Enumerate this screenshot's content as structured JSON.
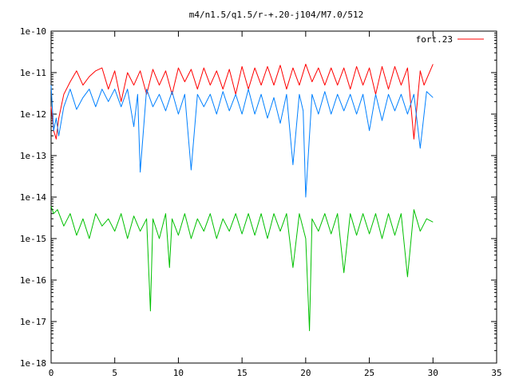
{
  "chart_data": {
    "type": "line",
    "title": "m4/n1.5/q1.5/r-+.20-j104/M7.0/512",
    "xlabel": "",
    "ylabel": "",
    "xlim": [
      0,
      35
    ],
    "ylim": [
      1e-18,
      1e-10
    ],
    "yscale": "log",
    "grid": false,
    "legend_position": "top-right",
    "x_ticks": [
      0,
      5,
      10,
      15,
      20,
      25,
      30,
      35
    ],
    "x_tick_labels": [
      "0",
      "5",
      "10",
      "15",
      "20",
      "25",
      "30",
      "35"
    ],
    "y_ticks": [
      1e-18,
      1e-17,
      1e-16,
      1e-15,
      1e-14,
      1e-13,
      1e-12,
      1e-11,
      1e-10
    ],
    "y_tick_labels": [
      "1e-18",
      "1e-17",
      "1e-16",
      "1e-15",
      "1e-14",
      "1e-13",
      "1e-12",
      "1e-11",
      "1e-10"
    ],
    "series": [
      {
        "name": "fort.23",
        "color": "#ff0000",
        "x": [
          0,
          0.2,
          0.4,
          0.6,
          1.0,
          1.5,
          2.0,
          2.5,
          3.0,
          3.5,
          4.0,
          4.5,
          5.0,
          5.5,
          6.0,
          6.5,
          7.0,
          7.5,
          8.0,
          8.5,
          9.0,
          9.5,
          10.0,
          10.5,
          11.0,
          11.5,
          12.0,
          12.5,
          13.0,
          13.5,
          14.0,
          14.5,
          15.0,
          15.5,
          16.0,
          16.5,
          17.0,
          17.5,
          18.0,
          18.5,
          19.0,
          19.5,
          20.0,
          20.5,
          21.0,
          21.5,
          22.0,
          22.5,
          23.0,
          23.5,
          24.0,
          24.5,
          25.0,
          25.5,
          26.0,
          26.5,
          27.0,
          27.5,
          28.0,
          28.5,
          29.0,
          29.3,
          29.5,
          30.0
        ],
        "y": [
          1.5e-12,
          4e-13,
          2.5e-13,
          8e-13,
          3e-12,
          6e-12,
          1.1e-11,
          5e-12,
          8e-12,
          1.1e-11,
          1.3e-11,
          4e-12,
          1.1e-11,
          2e-12,
          1e-11,
          5e-12,
          1.1e-11,
          3e-12,
          1.2e-11,
          5e-12,
          1.1e-11,
          3e-12,
          1.3e-11,
          6e-12,
          1.2e-11,
          4e-12,
          1.3e-11,
          5e-12,
          1.1e-11,
          4e-12,
          1.2e-11,
          3e-12,
          1.4e-11,
          4e-12,
          1.3e-11,
          5e-12,
          1.4e-11,
          5e-12,
          1.5e-11,
          4e-12,
          1.3e-11,
          5e-12,
          1.6e-11,
          6e-12,
          1.3e-11,
          5e-12,
          1.3e-11,
          5e-12,
          1.3e-11,
          4e-12,
          1.4e-11,
          5e-12,
          1.3e-11,
          3e-12,
          1.4e-11,
          4e-12,
          1.4e-11,
          5e-12,
          1.3e-11,
          2.5e-13,
          1.1e-11,
          5e-12,
          7e-12,
          1.6e-11
        ]
      },
      {
        "name": "",
        "color": "#0080ff",
        "x": [
          0,
          0.2,
          0.4,
          0.6,
          1.0,
          1.5,
          2.0,
          2.5,
          3.0,
          3.5,
          4.0,
          4.5,
          5.0,
          5.5,
          6.0,
          6.5,
          6.8,
          7.0,
          7.5,
          8.0,
          8.5,
          9.0,
          9.5,
          10.0,
          10.5,
          11.0,
          11.5,
          12.0,
          12.5,
          13.0,
          13.5,
          14.0,
          14.5,
          15.0,
          15.5,
          16.0,
          16.5,
          17.0,
          17.5,
          18.0,
          18.5,
          19.0,
          19.5,
          19.8,
          20.0,
          20.5,
          21.0,
          21.5,
          22.0,
          22.5,
          23.0,
          23.5,
          24.0,
          24.5,
          25.0,
          25.5,
          26.0,
          26.5,
          27.0,
          27.5,
          28.0,
          28.5,
          29.0,
          29.5,
          30.0
        ],
        "y": [
          5e-12,
          4e-13,
          8e-13,
          3e-13,
          1.5e-12,
          4e-12,
          1.3e-12,
          2.5e-12,
          4e-12,
          1.5e-12,
          4e-12,
          2e-12,
          4e-12,
          1.5e-12,
          4e-12,
          5e-13,
          3e-12,
          4e-14,
          4e-12,
          1.5e-12,
          3e-12,
          1.2e-12,
          3.5e-12,
          1e-12,
          3e-12,
          4.5e-14,
          3e-12,
          1.5e-12,
          3e-12,
          1e-12,
          3.5e-12,
          1.2e-12,
          3e-12,
          1e-12,
          4e-12,
          1e-12,
          3e-12,
          8e-13,
          2.5e-12,
          6e-13,
          3e-12,
          6e-14,
          3e-12,
          1.2e-12,
          1e-14,
          3e-12,
          1e-12,
          3.5e-12,
          1e-12,
          3e-12,
          1.2e-12,
          3e-12,
          1e-12,
          3e-12,
          4e-13,
          3e-12,
          7e-13,
          3e-12,
          1.2e-12,
          3e-12,
          1e-12,
          3e-12,
          1.5e-13,
          3.5e-12,
          2.5e-12
        ]
      },
      {
        "name": "",
        "color": "#00c000",
        "x": [
          0,
          0.2,
          0.5,
          1.0,
          1.5,
          2.0,
          2.5,
          3.0,
          3.5,
          4.0,
          4.5,
          5.0,
          5.5,
          6.0,
          6.5,
          7.0,
          7.5,
          7.8,
          8.0,
          8.5,
          9.0,
          9.3,
          9.5,
          10.0,
          10.5,
          11.0,
          11.5,
          12.0,
          12.5,
          13.0,
          13.5,
          14.0,
          14.5,
          15.0,
          15.5,
          16.0,
          16.5,
          17.0,
          17.5,
          18.0,
          18.5,
          19.0,
          19.5,
          20.0,
          20.3,
          20.5,
          21.0,
          21.5,
          22.0,
          22.5,
          23.0,
          23.5,
          24.0,
          24.5,
          25.0,
          25.5,
          26.0,
          26.5,
          27.0,
          27.5,
          28.0,
          28.5,
          29.0,
          29.5,
          30.0
        ],
        "y": [
          6e-15,
          4e-15,
          5e-15,
          2e-15,
          4e-15,
          1.2e-15,
          3e-15,
          1e-15,
          4e-15,
          2e-15,
          3e-15,
          1.5e-15,
          4e-15,
          1e-15,
          3.5e-15,
          1.5e-15,
          3e-15,
          1.8e-17,
          3e-15,
          1e-15,
          4e-15,
          2e-16,
          3e-15,
          1.2e-15,
          4e-15,
          1e-15,
          3e-15,
          1.5e-15,
          4e-15,
          1e-15,
          3e-15,
          1.5e-15,
          4e-15,
          1.3e-15,
          4e-15,
          1.2e-15,
          4e-15,
          1e-15,
          4e-15,
          1.5e-15,
          4e-15,
          2e-16,
          4e-15,
          1e-15,
          6e-18,
          3e-15,
          1.5e-15,
          4e-15,
          1.3e-15,
          4e-15,
          1.5e-16,
          4e-15,
          1.2e-15,
          4e-15,
          1.3e-15,
          4e-15,
          1e-15,
          4e-15,
          1.2e-15,
          4e-15,
          1.2e-16,
          5e-15,
          1.5e-15,
          3e-15,
          2.5e-15
        ]
      }
    ]
  }
}
